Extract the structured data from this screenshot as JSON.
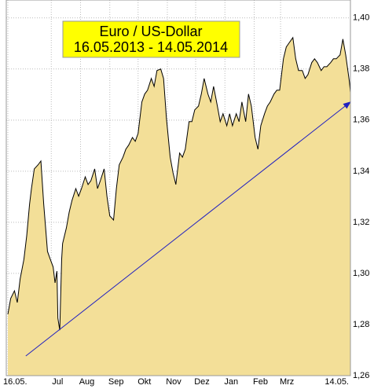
{
  "chart_data": {
    "type": "area",
    "title": "Euro / US-Dollar",
    "subtitle": "16.05.2013 - 14.05.2014",
    "color": "#f3df98",
    "line_color": "#000000",
    "grid": true,
    "xlim": [
      0,
      363
    ],
    "ylim": [
      1.26,
      1.407
    ],
    "xticks": [
      {
        "value": 0,
        "label": "16.05."
      },
      {
        "value": 46,
        "label": "Jul"
      },
      {
        "value": 77,
        "label": "Aug"
      },
      {
        "value": 108,
        "label": "Sep"
      },
      {
        "value": 138,
        "label": "Okt"
      },
      {
        "value": 169,
        "label": "Nov"
      },
      {
        "value": 199,
        "label": "Dez"
      },
      {
        "value": 230,
        "label": "Jan"
      },
      {
        "value": 261,
        "label": "Feb"
      },
      {
        "value": 289,
        "label": "Mrz"
      },
      {
        "value": 363,
        "label": "14.05."
      }
    ],
    "yticks": [
      {
        "value": 1.26,
        "label": "1,26"
      },
      {
        "value": 1.28,
        "label": "1,28"
      },
      {
        "value": 1.3,
        "label": "1,30"
      },
      {
        "value": 1.32,
        "label": "1,32"
      },
      {
        "value": 1.34,
        "label": "1,34"
      },
      {
        "value": 1.36,
        "label": "1,36"
      },
      {
        "value": 1.38,
        "label": "1,38"
      },
      {
        "value": 1.4,
        "label": "1,40"
      }
    ],
    "x": [
      0,
      3,
      7,
      10,
      13,
      17,
      20,
      23,
      25,
      28,
      32,
      35,
      38,
      42,
      45,
      48,
      50,
      52,
      53,
      55,
      57,
      58,
      62,
      65,
      68,
      72,
      75,
      78,
      82,
      85,
      88,
      92,
      95,
      98,
      102,
      105,
      108,
      112,
      115,
      118,
      122,
      125,
      128,
      132,
      135,
      138,
      142,
      145,
      148,
      152,
      155,
      158,
      162,
      165,
      168,
      172,
      175,
      178,
      182,
      185,
      188,
      192,
      195,
      198,
      202,
      205,
      208,
      212,
      215,
      218,
      222,
      225,
      228,
      232,
      235,
      238,
      242,
      245,
      248,
      252,
      255,
      258,
      262,
      265,
      268,
      272,
      275,
      278,
      282,
      285,
      288,
      292,
      295,
      298,
      302,
      305,
      308,
      312,
      315,
      318,
      322,
      325,
      328,
      332,
      335,
      338,
      342,
      345,
      348,
      352,
      355,
      358,
      362,
      363
    ],
    "values": [
      1.284,
      1.2902,
      1.2932,
      1.2886,
      1.2978,
      1.3055,
      1.3148,
      1.3271,
      1.3332,
      1.3409,
      1.3425,
      1.344,
      1.3271,
      1.3086,
      1.3055,
      1.3025,
      1.2963,
      1.3009,
      1.2825,
      1.2778,
      1.3055,
      1.3117,
      1.3178,
      1.324,
      1.3286,
      1.3332,
      1.3302,
      1.3332,
      1.3378,
      1.3348,
      1.3363,
      1.3409,
      1.3332,
      1.3363,
      1.3409,
      1.3302,
      1.3225,
      1.3209,
      1.3332,
      1.3425,
      1.3455,
      1.3486,
      1.3502,
      1.3532,
      1.3517,
      1.3548,
      1.3671,
      1.3702,
      1.3717,
      1.3763,
      1.3732,
      1.3794,
      1.38,
      1.3763,
      1.3609,
      1.3455,
      1.3394,
      1.3348,
      1.3471,
      1.3455,
      1.3486,
      1.3594,
      1.3594,
      1.364,
      1.3655,
      1.3702,
      1.3763,
      1.3702,
      1.3671,
      1.3732,
      1.3655,
      1.3594,
      1.3625,
      1.3578,
      1.3625,
      1.3578,
      1.3625,
      1.3594,
      1.3671,
      1.3594,
      1.3702,
      1.3655,
      1.3532,
      1.3486,
      1.3578,
      1.3625,
      1.3655,
      1.3671,
      1.3702,
      1.3717,
      1.3717,
      1.384,
      1.3886,
      1.3902,
      1.3923,
      1.384,
      1.3794,
      1.3794,
      1.3763,
      1.3778,
      1.3825,
      1.384,
      1.3825,
      1.3794,
      1.3809,
      1.3809,
      1.3825,
      1.384,
      1.384,
      1.3855,
      1.3917,
      1.3855,
      1.3748,
      1.3708
    ],
    "trendline": {
      "color": "#2020c0",
      "x": [
        19,
        363
      ],
      "values": [
        1.2677,
        1.3671
      ]
    }
  }
}
